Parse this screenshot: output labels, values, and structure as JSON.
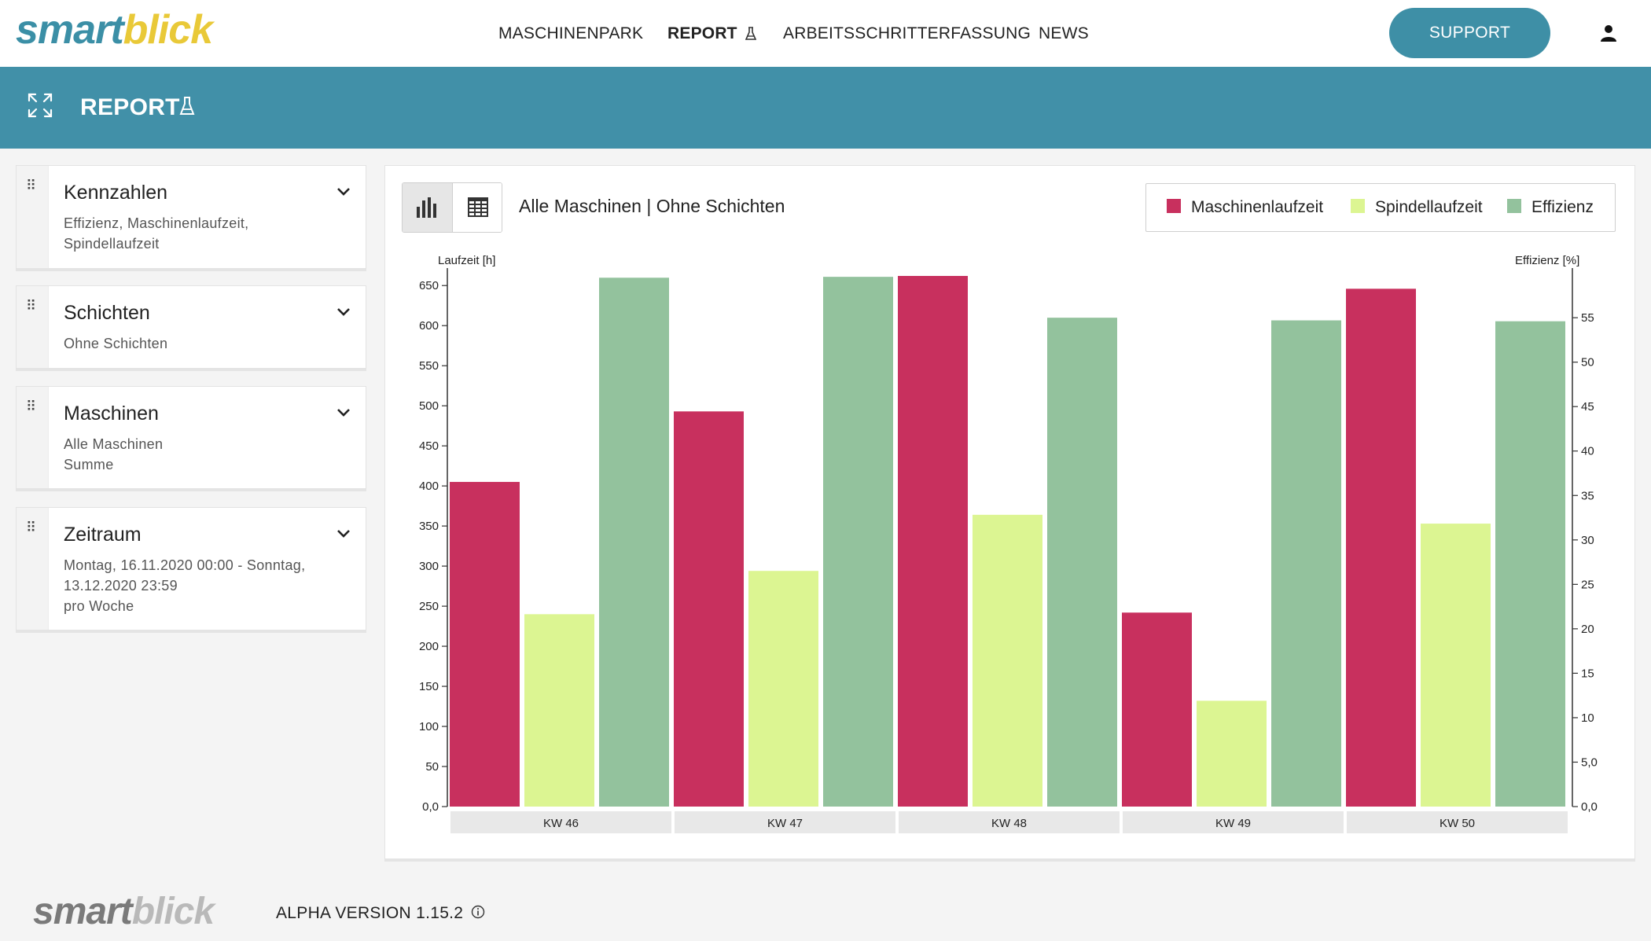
{
  "header": {
    "logo_part1": "smart",
    "logo_part2": "blick",
    "nav": [
      {
        "label": "MASCHINENPARK"
      },
      {
        "label": "REPORT"
      },
      {
        "label": "ARBEITSSCHRITTERFASSUNG"
      },
      {
        "label": "NEWS"
      }
    ],
    "support_label": "SUPPORT"
  },
  "band": {
    "title": "REPORT"
  },
  "filters": [
    {
      "title": "Kennzahlen",
      "lines": [
        "Effizienz, Maschinenlaufzeit,",
        "Spindellaufzeit"
      ]
    },
    {
      "title": "Schichten",
      "lines": [
        "Ohne Schichten"
      ]
    },
    {
      "title": "Maschinen",
      "lines": [
        "Alle Maschinen",
        "Summe"
      ]
    },
    {
      "title": "Zeitraum",
      "lines": [
        "Montag, 16.11.2020 00:00 - Sonntag,",
        "13.12.2020 23:59",
        "pro Woche"
      ]
    }
  ],
  "card": {
    "title": "Alle Maschinen | Ohne Schichten"
  },
  "colors": {
    "accent": "#4190a8",
    "maschinenlaufzeit": "#c8305e",
    "spindellaufzeit": "#dcf592",
    "effizienz": "#93c29d"
  },
  "chart_data": {
    "type": "bar",
    "categories": [
      "KW 46",
      "KW 47",
      "KW 48",
      "KW 49",
      "KW 50"
    ],
    "series": [
      {
        "name": "Maschinenlaufzeit",
        "axis": "left",
        "values": [
          405,
          493,
          662,
          242,
          646
        ]
      },
      {
        "name": "Spindellaufzeit",
        "axis": "left",
        "values": [
          240,
          294,
          364,
          132,
          353
        ]
      },
      {
        "name": "Effizienz",
        "axis": "right",
        "values": [
          59.5,
          59.6,
          55.0,
          54.7,
          54.6
        ]
      }
    ],
    "ylabel": "Laufzeit [h]",
    "ylim": [
      0,
      662
    ],
    "yticks": [
      "0,0",
      "50",
      "100",
      "150",
      "200",
      "250",
      "300",
      "350",
      "400",
      "450",
      "500",
      "550",
      "600",
      "650"
    ],
    "y2label": "Effizienz [%]",
    "y2lim": [
      0,
      59.7
    ],
    "y2ticks": [
      "0,0",
      "5,0",
      "10",
      "15",
      "20",
      "25",
      "30",
      "35",
      "40",
      "45",
      "50",
      "55"
    ],
    "legend_position": "top-right",
    "grid": false
  },
  "footer": {
    "logo_part1": "smart",
    "logo_part2": "blick",
    "version": "ALPHA VERSION 1.15.2"
  }
}
